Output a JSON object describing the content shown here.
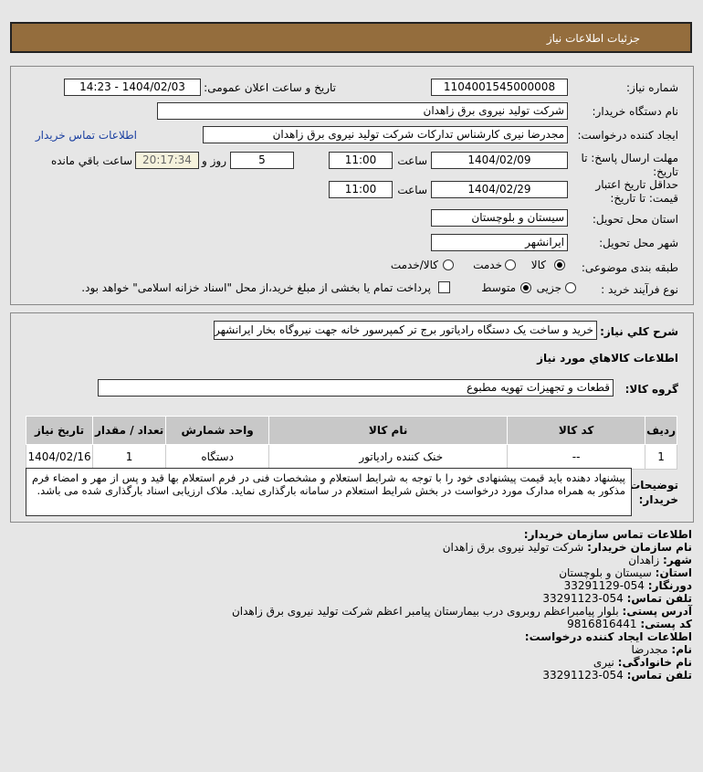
{
  "header": {
    "title": "جزئیات اطلاعات نیاز"
  },
  "form": {
    "need_number_label": "شماره نیاز:",
    "need_number": "1104001545000008",
    "announce_label": "تاریخ و ساعت اعلان عمومی:",
    "announce_value": "1404/02/03 - 14:23",
    "buyer_label": "نام دستگاه خریدار:",
    "buyer": "شرکت تولید نیروی برق زاهدان",
    "creator_label": "ایجاد کننده درخواست:",
    "creator": "مجدرضا نیری کارشناس تدارکات شرکت تولید نیروی برق زاهدان",
    "contact_link": "اطلاعات تماس خریدار",
    "deadline_label_1": "مهلت ارسال پاسخ: تا",
    "deadline_label_2": "تاریخ:",
    "deadline_date": "1404/02/09",
    "time_label": "ساعت",
    "deadline_time": "11:00",
    "days": "5",
    "days_label": "روز و",
    "remaining": "20:17:34",
    "remaining_label": "ساعت باقي مانده",
    "validity_label_1": "حداقل تاریخ اعتبار",
    "validity_label_2": "قیمت: تا تاریخ:",
    "validity_date": "1404/02/29",
    "validity_time": "11:00",
    "province_label": "استان محل تحویل:",
    "province": "سیستان و بلوچستان",
    "city_label": "شهر محل تحویل:",
    "city": "ایرانشهر",
    "category_label": "طبقه بندی موضوعی:",
    "category_options": [
      "کالا",
      "خدمت",
      "کالا/خدمت"
    ],
    "category_selected": "کالا",
    "process_label": "نوع فرآیند خرید :",
    "process_options": [
      "جزیی",
      "متوسط"
    ],
    "process_selected": "متوسط",
    "payment_note": "پرداخت تمام یا بخشی از مبلغ خرید،از محل \"اسناد خزانه اسلامی\" خواهد بود.",
    "payment_checked": false
  },
  "details": {
    "summary_label": "شرح کلي نیاز:",
    "summary": "خرید و ساخت یک دستگاه رادیاتور برج تر کمپرسور خانه جهت نیروگاه بخار ایرانشهر",
    "goods_title": "اطلاعات کالاهاي مورد نیاز",
    "group_label": "گروه کالا:",
    "group": "قطعات و تجهیزات تهویه مطبوع",
    "table": {
      "headers": [
        "ردیف",
        "کد کالا",
        "نام کالا",
        "واحد شمارش",
        "تعداد / مقدار",
        "تاریخ نیاز"
      ],
      "rows": [
        [
          "1",
          "--",
          "خنک کننده رادیاتور",
          "دستگاه",
          "1",
          "1404/02/16"
        ]
      ]
    },
    "notes_label_1": "توضیحات",
    "notes_label_2": "خریدار:",
    "notes": "پیشنهاد دهنده باید قیمت پیشنهادی خود را با توجه به شرایط استعلام و مشخصات فنی در فرم استعلام بها قید و پس از مهر و امضاء فرم مذکور به همراه مدارک مورد درخواست در بخش شرایط استعلام در سامانه بارگذاری نماید. ملاک ارزیابی اسناد بارگذاری شده می باشد."
  },
  "contact": {
    "title": "اطلاعات تماس سازمان خریدار:",
    "org_label": "نام سازمان خریدار:",
    "org": "شرکت تولید نیروی برق زاهدان",
    "city_label": "شهر:",
    "city": "زاهدان",
    "province_label": "استان:",
    "province": "سیستان و بلوچستان",
    "fax_label": "دورنگار:",
    "fax": "054-33291129",
    "phone_label": "تلفن تماس:",
    "phone": "054-33291123",
    "address_label": "آدرس پستی:",
    "address": "بلوار پیامبراعظم روبروی درب بیمارستان پیامبر اعظم شرکت تولید نیروی برق زاهدان",
    "postal_label": "کد پستی:",
    "postal": "9816816441",
    "creator_title": "اطلاعات ایجاد کننده درخواست:",
    "name_label": "نام:",
    "name": "مجدرضا",
    "family_label": "نام خانوادگی:",
    "family": "نیری",
    "creator_phone_label": "تلفن تماس:",
    "creator_phone": "054-33291123"
  },
  "colors": {
    "header": "#946d3d",
    "link": "#1a3fa0",
    "background": "#e6e6e6"
  }
}
